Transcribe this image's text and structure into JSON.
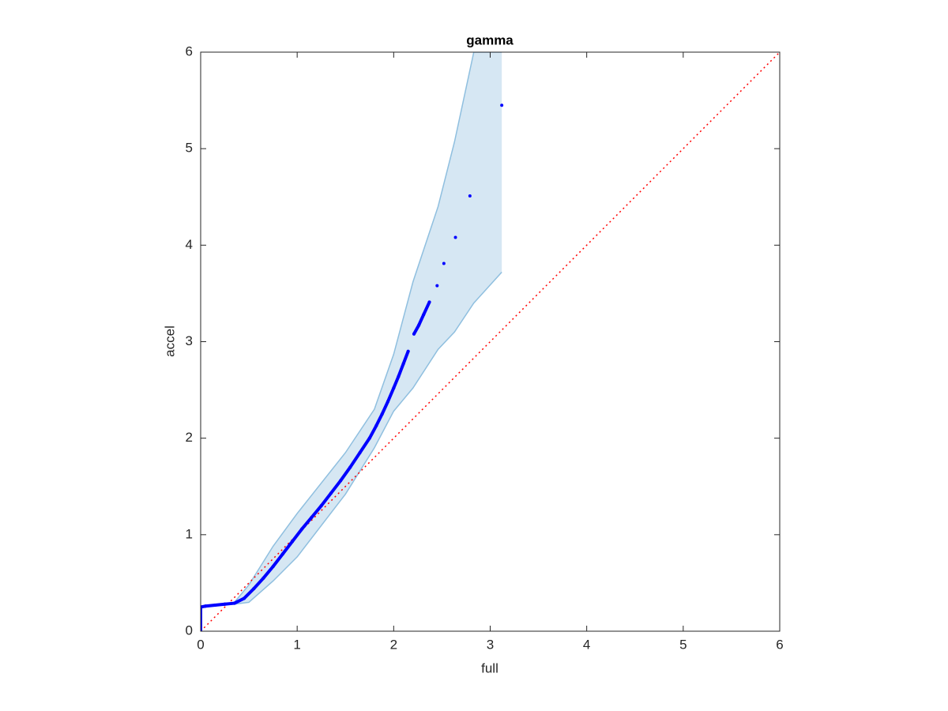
{
  "chart_data": {
    "type": "scatter",
    "title": "gamma",
    "x_label": "full",
    "y_label": "accel",
    "xlim": [
      0,
      6
    ],
    "ylim": [
      0,
      6
    ],
    "xticks": [
      0,
      1,
      2,
      3,
      4,
      5,
      6
    ],
    "yticks": [
      0,
      1,
      2,
      3,
      4,
      5,
      6
    ],
    "points": {
      "color": "#0000ff",
      "x": [
        0,
        0,
        0,
        0,
        0.05,
        0.15,
        0.25,
        0.35,
        0.45,
        0.55,
        0.65,
        0.75,
        0.85,
        0.95,
        1.05,
        1.15,
        1.25,
        1.35,
        1.45,
        1.55,
        1.65,
        1.75,
        1.82,
        1.88,
        1.94,
        2.0,
        2.05,
        2.1,
        2.15,
        2.21,
        2.26,
        2.31,
        2.37,
        2.45,
        2.52,
        2.64,
        2.79,
        3.12
      ],
      "y": [
        0,
        0.1,
        0.2,
        0.25,
        0.26,
        0.27,
        0.28,
        0.29,
        0.34,
        0.44,
        0.55,
        0.67,
        0.8,
        0.93,
        1.06,
        1.18,
        1.3,
        1.43,
        1.56,
        1.7,
        1.85,
        2.0,
        2.13,
        2.25,
        2.38,
        2.52,
        2.64,
        2.77,
        2.9,
        3.08,
        3.17,
        3.28,
        3.41,
        3.58,
        3.81,
        4.08,
        4.51,
        5.45
      ]
    },
    "band": {
      "color": "#d6e7f3",
      "edge_color": "#8fbfdf",
      "x": [
        0.35,
        0.5,
        0.75,
        1.0,
        1.5,
        1.8,
        2.0,
        2.2,
        2.46,
        2.63,
        2.83,
        3.12
      ],
      "upper": [
        0.3,
        0.48,
        0.88,
        1.22,
        1.85,
        2.3,
        2.87,
        3.62,
        4.4,
        5.07,
        6.0,
        6.0
      ],
      "lower": [
        0.28,
        0.3,
        0.52,
        0.77,
        1.42,
        1.9,
        2.28,
        2.52,
        2.92,
        3.1,
        3.4,
        3.72
      ]
    },
    "reference": {
      "color": "#ff0000",
      "x": [
        0,
        6
      ],
      "y": [
        0,
        6
      ]
    }
  }
}
